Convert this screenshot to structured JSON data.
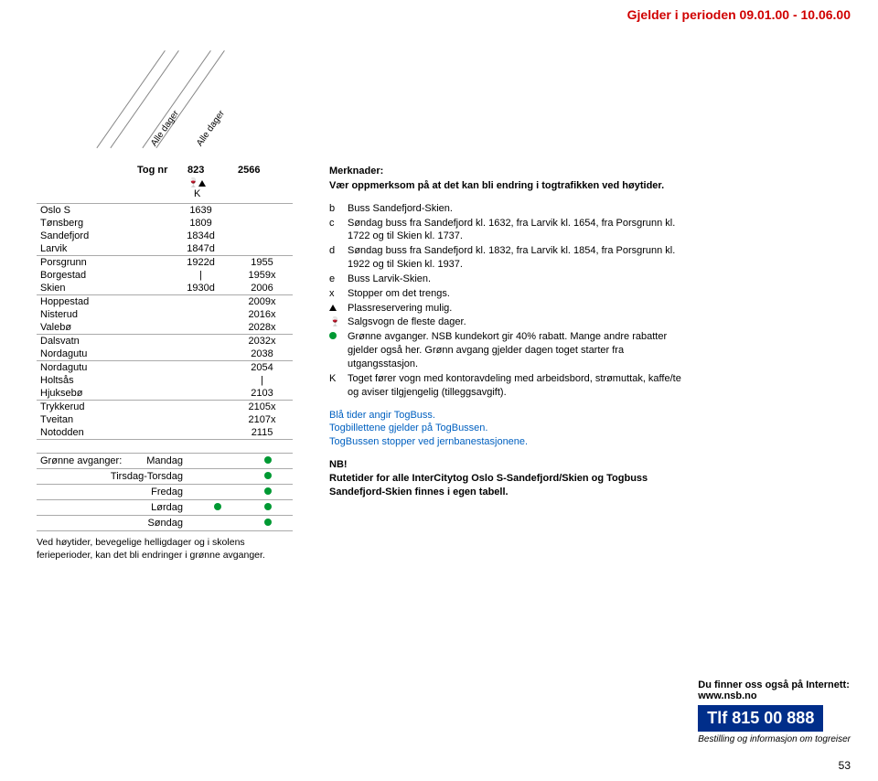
{
  "header": "Gjelder i perioden 09.01.00 - 10.06.00",
  "diag_labels": [
    "Alle dager",
    "Alle dager"
  ],
  "tog_nr_label": "Tog nr",
  "tog_cols": [
    "823",
    "2566"
  ],
  "tog_k": "K",
  "groups": [
    {
      "rows": [
        {
          "s": "Oslo S",
          "c1": "1639",
          "c2": ""
        },
        {
          "s": "Tønsberg",
          "c1": "1809",
          "c2": ""
        },
        {
          "s": "Sandefjord",
          "c1": "1834d",
          "c2": ""
        },
        {
          "s": "Larvik",
          "c1": "1847d",
          "c2": ""
        }
      ]
    },
    {
      "rows": [
        {
          "s": "Porsgrunn",
          "c1": "1922d",
          "c2": "1955"
        },
        {
          "s": "Borgestad",
          "c1": "|",
          "c2": "1959x"
        },
        {
          "s": "Skien",
          "c1": "1930d",
          "c2": "2006"
        }
      ]
    },
    {
      "rows": [
        {
          "s": "Hoppestad",
          "c1": "",
          "c2": "2009x"
        },
        {
          "s": "Nisterud",
          "c1": "",
          "c2": "2016x"
        },
        {
          "s": "Valebø",
          "c1": "",
          "c2": "2028x"
        }
      ]
    },
    {
      "rows": [
        {
          "s": "Dalsvatn",
          "c1": "",
          "c2": "2032x"
        },
        {
          "s": "Nordagutu",
          "c1": "",
          "c2": "2038"
        }
      ]
    },
    {
      "rows": [
        {
          "s": "Nordagutu",
          "c1": "",
          "c2": "2054"
        },
        {
          "s": "Holtsås",
          "c1": "",
          "c2": "|"
        },
        {
          "s": "Hjuksebø",
          "c1": "",
          "c2": "2103"
        }
      ]
    },
    {
      "rows": [
        {
          "s": "Trykkerud",
          "c1": "",
          "c2": "2105x"
        },
        {
          "s": "Tveitan",
          "c1": "",
          "c2": "2107x"
        },
        {
          "s": "Notodden",
          "c1": "",
          "c2": "2115"
        }
      ]
    }
  ],
  "green_label": "Grønne avganger:",
  "green_days": [
    {
      "d": "Mandag",
      "d1": false,
      "d2": true
    },
    {
      "d": "Tirsdag-Torsdag",
      "d1": false,
      "d2": true
    },
    {
      "d": "Fredag",
      "d1": false,
      "d2": true
    },
    {
      "d": "Lørdag",
      "d1": true,
      "d2": true
    },
    {
      "d": "Søndag",
      "d1": false,
      "d2": true
    }
  ],
  "green_note": "Ved høytider, bevegelige helligdager og i skolens ferieperioder, kan det bli endringer i grønne avganger.",
  "merkn_head": "Merknader:",
  "merkn_sub": "Vær oppmerksom på at det kan bli endring i togtrafikken ved høytider.",
  "notes": [
    {
      "k": "b",
      "t": "Buss Sandefjord-Skien."
    },
    {
      "k": "c",
      "t": "Søndag buss fra Sandefjord kl. 1632, fra Larvik kl. 1654, fra Porsgrunn kl. 1722 og til Skien kl. 1737."
    },
    {
      "k": "d",
      "t": "Søndag buss fra Sandefjord kl. 1832, fra Larvik kl. 1854, fra Porsgrunn kl. 1922 og til Skien kl. 1937."
    },
    {
      "k": "e",
      "t": "Buss Larvik-Skien."
    },
    {
      "k": "x",
      "t": "Stopper om det trengs."
    },
    {
      "k": "tri",
      "t": "Plassreservering mulig."
    },
    {
      "k": "glass",
      "t": "Salgsvogn de fleste dager."
    },
    {
      "k": "dot",
      "t": "Grønne avganger. NSB kundekort gir 40% rabatt. Mange andre rabatter gjelder også her. Grønn avgang gjelder dagen toget starter fra utgangsstasjon."
    },
    {
      "k": "K",
      "t": "Toget fører vogn med kontoravdeling med arbeidsbord, strømuttak, kaffe/te og aviser tilgjengelig (tilleggsavgift)."
    }
  ],
  "blue_lines": [
    "Blå tider angir TogBuss.",
    "Togbillettene gjelder på TogBussen.",
    "TogBussen stopper ved jernbanestasjonene."
  ],
  "nb_head": "NB!",
  "nb_text": "Rutetider for alle InterCitytog Oslo S-Sandefjord/Skien og Togbuss Sandefjord-Skien finnes i egen tabell.",
  "internet_line1": "Du finner oss også på Internett:",
  "internet_line2": "www.nsb.no",
  "tlf": "Tlf 815 00 888",
  "tlf_sub": "Bestilling og informasjon om togreiser",
  "page": "53"
}
